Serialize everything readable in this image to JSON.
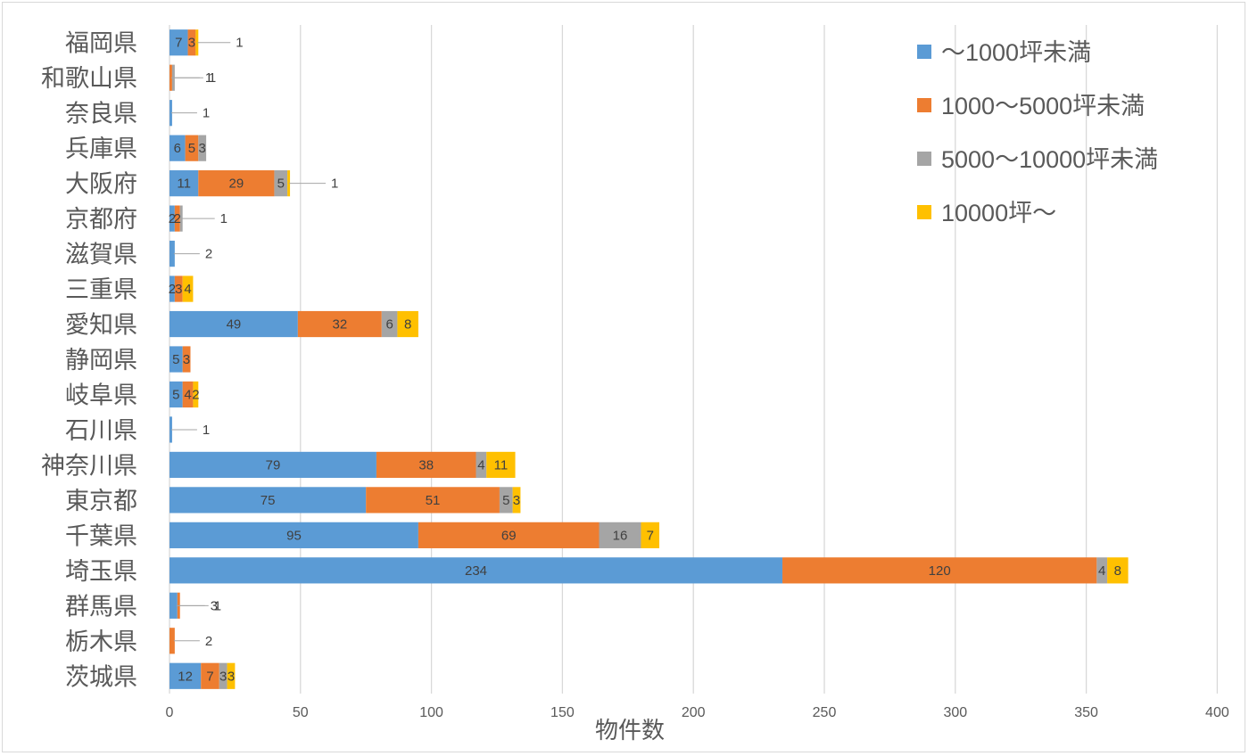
{
  "chart_data": {
    "type": "bar",
    "orientation": "horizontal",
    "stacked": true,
    "title": "",
    "xlabel": "物件数",
    "ylabel": "",
    "xlim": [
      0,
      400
    ],
    "xticks": [
      0,
      50,
      100,
      150,
      200,
      250,
      300,
      350,
      400
    ],
    "grid": "vertical",
    "legend_position": "top-right",
    "categories": [
      "福岡県",
      "和歌山県",
      "奈良県",
      "兵庫県",
      "大阪府",
      "京都府",
      "滋賀県",
      "三重県",
      "愛知県",
      "静岡県",
      "岐阜県",
      "石川県",
      "神奈川県",
      "東京都",
      "千葉県",
      "埼玉県",
      "群馬県",
      "栃木県",
      "茨城県"
    ],
    "series": [
      {
        "name": "〜1000坪未満",
        "color": "#5b9bd5",
        "values": [
          7,
          null,
          1,
          6,
          11,
          2,
          2,
          2,
          49,
          5,
          5,
          1,
          79,
          75,
          95,
          234,
          3,
          null,
          12
        ]
      },
      {
        "name": "1000〜5000坪未満",
        "color": "#ed7d31",
        "values": [
          3,
          1,
          null,
          5,
          29,
          2,
          null,
          3,
          32,
          3,
          4,
          null,
          38,
          51,
          69,
          120,
          1,
          2,
          7
        ]
      },
      {
        "name": "5000〜10000坪未満",
        "color": "#a5a5a5",
        "values": [
          null,
          1,
          null,
          3,
          5,
          1,
          null,
          null,
          6,
          null,
          null,
          null,
          4,
          5,
          16,
          4,
          null,
          null,
          3
        ]
      },
      {
        "name": "10000坪〜",
        "color": "#ffc000",
        "values": [
          1,
          null,
          null,
          null,
          1,
          null,
          null,
          4,
          8,
          null,
          2,
          null,
          11,
          3,
          7,
          8,
          null,
          null,
          3
        ]
      }
    ]
  }
}
